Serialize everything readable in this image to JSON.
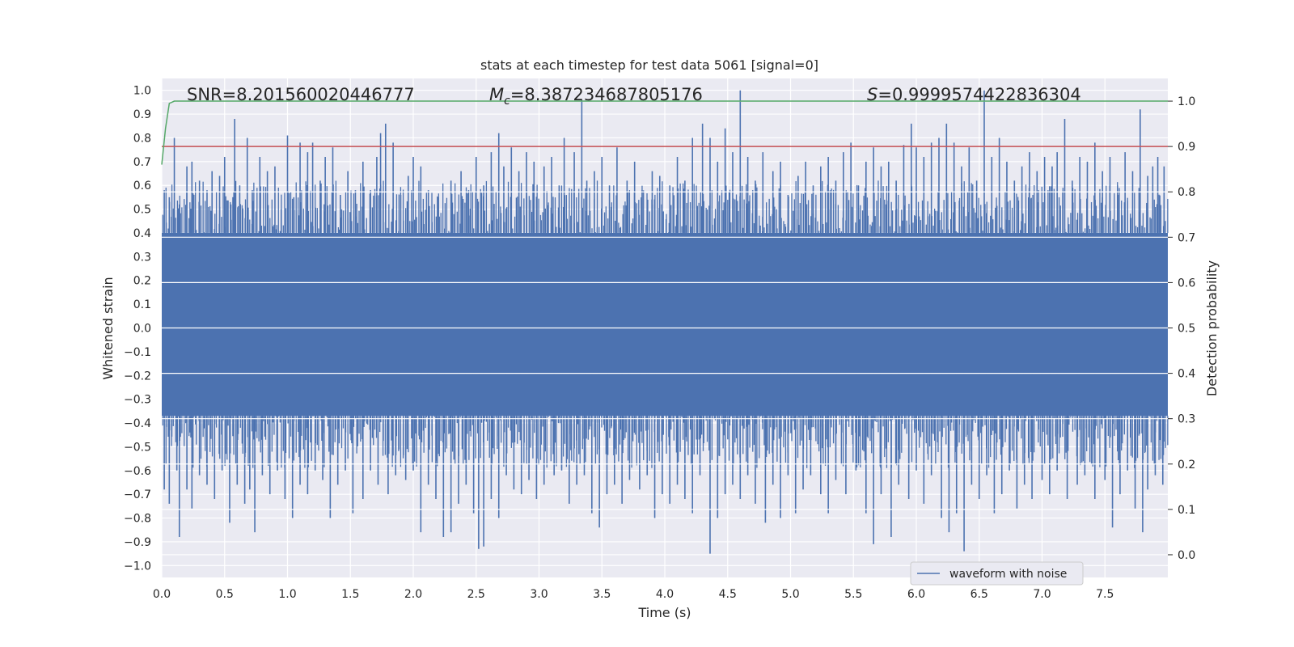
{
  "chart_data": {
    "type": "line",
    "title": "stats at each timestep for test data 5061 [signal=0]",
    "xlabel": "Time (s)",
    "ylabel": "Whitened strain",
    "y2label": "Detection probability",
    "xlim": [
      0,
      8
    ],
    "ylim": [
      -1.05,
      1.05
    ],
    "y2lim": [
      -0.05,
      1.05
    ],
    "grid": true,
    "legend_placement": "lower-right",
    "x_ticks": [
      "0.0",
      "0.5",
      "1.0",
      "1.5",
      "2.0",
      "2.5",
      "3.0",
      "3.5",
      "4.0",
      "4.5",
      "5.0",
      "5.5",
      "6.0",
      "6.5",
      "7.0",
      "7.5"
    ],
    "y_ticks": [
      "1.0",
      "0.9",
      "0.8",
      "0.7",
      "0.6",
      "0.5",
      "0.4",
      "0.3",
      "0.2",
      "0.1",
      "0.0",
      "-0.1",
      "-0.2",
      "-0.3",
      "-0.4",
      "-0.5",
      "-0.6",
      "-0.7",
      "-0.8",
      "-0.9",
      "-1.0"
    ],
    "y2_ticks": [
      "1.0",
      "0.9",
      "0.8",
      "0.7",
      "0.6",
      "0.5",
      "0.4",
      "0.3",
      "0.2",
      "0.1",
      "0.0"
    ],
    "annotations": {
      "snr": "SNR=8.201560020446777",
      "mc_symbol": "M",
      "mc_sub": "c",
      "mc_value": "=8.387234687805176",
      "s_symbol": "S",
      "s_value": "=0.9999574422836304"
    },
    "series": [
      {
        "name": "waveform with noise",
        "axis": "left",
        "color": "#4c72b0",
        "band": {
          "upper": 0.4,
          "lower": -0.37
        },
        "upper_peaks": [
          [
            0.02,
            0.58
          ],
          [
            0.06,
            0.55
          ],
          [
            0.1,
            0.8
          ],
          [
            0.14,
            0.52
          ],
          [
            0.2,
            0.68
          ],
          [
            0.24,
            0.7
          ],
          [
            0.3,
            0.62
          ],
          [
            0.36,
            0.58
          ],
          [
            0.4,
            0.66
          ],
          [
            0.46,
            0.64
          ],
          [
            0.5,
            0.72
          ],
          [
            0.55,
            0.52
          ],
          [
            0.58,
            0.88
          ],
          [
            0.62,
            0.6
          ],
          [
            0.68,
            0.8
          ],
          [
            0.72,
            0.58
          ],
          [
            0.78,
            0.72
          ],
          [
            0.84,
            0.66
          ],
          [
            0.9,
            0.68
          ],
          [
            0.95,
            0.5
          ],
          [
            1.0,
            0.81
          ],
          [
            1.05,
            0.55
          ],
          [
            1.1,
            0.78
          ],
          [
            1.16,
            0.74
          ],
          [
            1.2,
            0.78
          ],
          [
            1.26,
            0.62
          ],
          [
            1.3,
            0.72
          ],
          [
            1.36,
            0.76
          ],
          [
            1.42,
            0.56
          ],
          [
            1.48,
            0.66
          ],
          [
            1.54,
            0.58
          ],
          [
            1.6,
            0.7
          ],
          [
            1.66,
            0.58
          ],
          [
            1.71,
            0.72
          ],
          [
            1.74,
            0.82
          ],
          [
            1.78,
            0.86
          ],
          [
            1.84,
            0.78
          ],
          [
            1.9,
            0.56
          ],
          [
            1.96,
            0.64
          ],
          [
            2.0,
            0.72
          ],
          [
            2.06,
            0.68
          ],
          [
            2.12,
            0.58
          ],
          [
            2.2,
            0.55
          ],
          [
            2.3,
            0.62
          ],
          [
            2.38,
            0.66
          ],
          [
            2.44,
            0.58
          ],
          [
            2.5,
            0.72
          ],
          [
            2.56,
            0.6
          ],
          [
            2.62,
            0.74
          ],
          [
            2.68,
            0.82
          ],
          [
            2.72,
            0.68
          ],
          [
            2.78,
            0.76
          ],
          [
            2.84,
            0.66
          ],
          [
            2.9,
            0.74
          ],
          [
            2.96,
            0.7
          ],
          [
            3.04,
            0.68
          ],
          [
            3.1,
            0.72
          ],
          [
            3.16,
            0.6
          ],
          [
            3.2,
            0.8
          ],
          [
            3.28,
            0.74
          ],
          [
            3.34,
            0.96
          ],
          [
            3.38,
            0.62
          ],
          [
            3.44,
            0.66
          ],
          [
            3.5,
            0.72
          ],
          [
            3.56,
            0.6
          ],
          [
            3.62,
            0.76
          ],
          [
            3.7,
            0.62
          ],
          [
            3.76,
            0.7
          ],
          [
            3.82,
            0.58
          ],
          [
            3.9,
            0.66
          ],
          [
            3.96,
            0.64
          ],
          [
            4.04,
            0.6
          ],
          [
            4.1,
            0.72
          ],
          [
            4.16,
            0.62
          ],
          [
            4.22,
            0.8
          ],
          [
            4.3,
            0.86
          ],
          [
            4.36,
            0.8
          ],
          [
            4.42,
            0.7
          ],
          [
            4.48,
            0.84
          ],
          [
            4.54,
            0.74
          ],
          [
            4.6,
            1.0
          ],
          [
            4.66,
            0.72
          ],
          [
            4.72,
            0.62
          ],
          [
            4.78,
            0.74
          ],
          [
            4.86,
            0.66
          ],
          [
            4.92,
            0.7
          ],
          [
            4.98,
            0.56
          ],
          [
            5.06,
            0.64
          ],
          [
            5.12,
            0.7
          ],
          [
            5.18,
            0.6
          ],
          [
            5.24,
            0.68
          ],
          [
            5.3,
            0.72
          ],
          [
            5.36,
            0.62
          ],
          [
            5.42,
            0.74
          ],
          [
            5.48,
            0.78
          ],
          [
            5.54,
            0.6
          ],
          [
            5.6,
            0.7
          ],
          [
            5.66,
            0.76
          ],
          [
            5.72,
            0.68
          ],
          [
            5.78,
            0.7
          ],
          [
            5.84,
            0.62
          ],
          [
            5.9,
            0.77
          ],
          [
            5.96,
            0.86
          ],
          [
            6.0,
            0.76
          ],
          [
            6.06,
            0.72
          ],
          [
            6.12,
            0.78
          ],
          [
            6.18,
            0.8
          ],
          [
            6.24,
            0.86
          ],
          [
            6.3,
            0.78
          ],
          [
            6.36,
            0.68
          ],
          [
            6.42,
            0.76
          ],
          [
            6.48,
            0.62
          ],
          [
            6.54,
            1.0
          ],
          [
            6.6,
            0.72
          ],
          [
            6.66,
            0.8
          ],
          [
            6.72,
            0.7
          ],
          [
            6.78,
            0.62
          ],
          [
            6.84,
            0.68
          ],
          [
            6.9,
            0.74
          ],
          [
            6.96,
            0.66
          ],
          [
            7.02,
            0.72
          ],
          [
            7.08,
            0.68
          ],
          [
            7.12,
            0.74
          ],
          [
            7.18,
            0.88
          ],
          [
            7.24,
            0.62
          ],
          [
            7.3,
            0.72
          ],
          [
            7.36,
            0.7
          ],
          [
            7.42,
            0.78
          ],
          [
            7.48,
            0.66
          ],
          [
            7.54,
            0.72
          ],
          [
            7.6,
            0.6
          ],
          [
            7.66,
            0.74
          ],
          [
            7.72,
            0.66
          ],
          [
            7.78,
            0.92
          ],
          [
            7.84,
            0.64
          ],
          [
            7.88,
            0.68
          ],
          [
            7.92,
            0.72
          ],
          [
            7.97,
            0.68
          ]
        ],
        "lower_peaks": [
          [
            0.02,
            -0.68
          ],
          [
            0.06,
            -0.74
          ],
          [
            0.12,
            -0.6
          ],
          [
            0.14,
            -0.88
          ],
          [
            0.2,
            -0.68
          ],
          [
            0.24,
            -0.76
          ],
          [
            0.3,
            -0.62
          ],
          [
            0.36,
            -0.66
          ],
          [
            0.42,
            -0.72
          ],
          [
            0.48,
            -0.6
          ],
          [
            0.54,
            -0.82
          ],
          [
            0.6,
            -0.66
          ],
          [
            0.66,
            -0.74
          ],
          [
            0.7,
            -0.68
          ],
          [
            0.74,
            -0.86
          ],
          [
            0.8,
            -0.62
          ],
          [
            0.86,
            -0.7
          ],
          [
            0.92,
            -0.6
          ],
          [
            0.98,
            -0.72
          ],
          [
            1.04,
            -0.8
          ],
          [
            1.1,
            -0.66
          ],
          [
            1.16,
            -0.7
          ],
          [
            1.22,
            -0.6
          ],
          [
            1.28,
            -0.64
          ],
          [
            1.34,
            -0.8
          ],
          [
            1.4,
            -0.66
          ],
          [
            1.46,
            -0.6
          ],
          [
            1.52,
            -0.78
          ],
          [
            1.6,
            -0.72
          ],
          [
            1.66,
            -0.6
          ],
          [
            1.72,
            -0.66
          ],
          [
            1.8,
            -0.7
          ],
          [
            1.86,
            -0.62
          ],
          [
            1.94,
            -0.64
          ],
          [
            2.0,
            -0.6
          ],
          [
            2.06,
            -0.86
          ],
          [
            2.12,
            -0.66
          ],
          [
            2.18,
            -0.72
          ],
          [
            2.24,
            -0.88
          ],
          [
            2.3,
            -0.86
          ],
          [
            2.36,
            -0.74
          ],
          [
            2.42,
            -0.66
          ],
          [
            2.48,
            -0.78
          ],
          [
            2.52,
            -0.93
          ],
          [
            2.56,
            -0.92
          ],
          [
            2.62,
            -0.72
          ],
          [
            2.68,
            -0.8
          ],
          [
            2.74,
            -0.62
          ],
          [
            2.8,
            -0.68
          ],
          [
            2.86,
            -0.7
          ],
          [
            2.92,
            -0.64
          ],
          [
            2.98,
            -0.72
          ],
          [
            3.04,
            -0.66
          ],
          [
            3.12,
            -0.62
          ],
          [
            3.18,
            -0.6
          ],
          [
            3.24,
            -0.74
          ],
          [
            3.3,
            -0.66
          ],
          [
            3.36,
            -0.62
          ],
          [
            3.42,
            -0.78
          ],
          [
            3.48,
            -0.84
          ],
          [
            3.54,
            -0.7
          ],
          [
            3.6,
            -0.66
          ],
          [
            3.66,
            -0.74
          ],
          [
            3.72,
            -0.64
          ],
          [
            3.8,
            -0.68
          ],
          [
            3.86,
            -0.62
          ],
          [
            3.92,
            -0.8
          ],
          [
            3.98,
            -0.7
          ],
          [
            4.04,
            -0.74
          ],
          [
            4.1,
            -0.66
          ],
          [
            4.16,
            -0.72
          ],
          [
            4.22,
            -0.78
          ],
          [
            4.28,
            -0.62
          ],
          [
            4.36,
            -0.95
          ],
          [
            4.42,
            -0.8
          ],
          [
            4.48,
            -0.7
          ],
          [
            4.54,
            -0.66
          ],
          [
            4.6,
            -0.72
          ],
          [
            4.66,
            -0.62
          ],
          [
            4.72,
            -0.74
          ],
          [
            4.8,
            -0.82
          ],
          [
            4.86,
            -0.66
          ],
          [
            4.92,
            -0.8
          ],
          [
            4.98,
            -0.62
          ],
          [
            5.04,
            -0.78
          ],
          [
            5.1,
            -0.68
          ],
          [
            5.16,
            -0.62
          ],
          [
            5.24,
            -0.7
          ],
          [
            5.3,
            -0.78
          ],
          [
            5.36,
            -0.64
          ],
          [
            5.44,
            -0.7
          ],
          [
            5.52,
            -0.6
          ],
          [
            5.6,
            -0.78
          ],
          [
            5.66,
            -0.91
          ],
          [
            5.72,
            -0.7
          ],
          [
            5.8,
            -0.88
          ],
          [
            5.86,
            -0.66
          ],
          [
            5.94,
            -0.72
          ],
          [
            6.0,
            -0.6
          ],
          [
            6.06,
            -0.74
          ],
          [
            6.12,
            -0.62
          ],
          [
            6.2,
            -0.8
          ],
          [
            6.26,
            -0.86
          ],
          [
            6.32,
            -0.78
          ],
          [
            6.38,
            -0.94
          ],
          [
            6.44,
            -0.66
          ],
          [
            6.5,
            -0.72
          ],
          [
            6.56,
            -0.62
          ],
          [
            6.62,
            -0.78
          ],
          [
            6.68,
            -0.7
          ],
          [
            6.74,
            -0.6
          ],
          [
            6.8,
            -0.76
          ],
          [
            6.86,
            -0.66
          ],
          [
            6.92,
            -0.72
          ],
          [
            7.0,
            -0.64
          ],
          [
            7.06,
            -0.7
          ],
          [
            7.12,
            -0.6
          ],
          [
            7.2,
            -0.72
          ],
          [
            7.28,
            -0.66
          ],
          [
            7.34,
            -0.62
          ],
          [
            7.42,
            -0.72
          ],
          [
            7.5,
            -0.64
          ],
          [
            7.56,
            -0.84
          ],
          [
            7.62,
            -0.7
          ],
          [
            7.68,
            -0.6
          ],
          [
            7.74,
            -0.76
          ],
          [
            7.8,
            -0.86
          ],
          [
            7.84,
            -0.68
          ],
          [
            7.9,
            -0.62
          ],
          [
            7.96,
            -0.66
          ]
        ]
      },
      {
        "axis": "right",
        "color": "#55a868",
        "points": [
          [
            0.0,
            0.86
          ],
          [
            0.03,
            0.94
          ],
          [
            0.06,
            0.995
          ],
          [
            0.1,
            1.0
          ],
          [
            8.0,
            1.0
          ]
        ]
      },
      {
        "axis": "right",
        "color": "#c44e52",
        "points": [
          [
            0.0,
            0.9
          ],
          [
            8.0,
            0.9
          ]
        ]
      }
    ]
  }
}
